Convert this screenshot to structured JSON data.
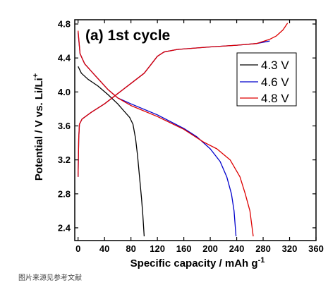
{
  "caption": "图片来源见参考文献",
  "chart_data": {
    "type": "line",
    "title": "(a) 1st cycle",
    "xlabel": "Specific capacity / mAh g",
    "xlabel_sup": "-1",
    "ylabel": "Potential / V vs. Li/Li",
    "ylabel_sup": "+",
    "xlim": [
      -5,
      360
    ],
    "ylim": [
      2.25,
      4.85
    ],
    "xticks": [
      "0",
      "40",
      "80",
      "120",
      "160",
      "200",
      "240",
      "280",
      "320",
      "360"
    ],
    "xtick_values": [
      0,
      40,
      80,
      120,
      160,
      200,
      240,
      280,
      320,
      360
    ],
    "yticks": [
      "2.4",
      "2.8",
      "3.2",
      "3.6",
      "4.0",
      "4.4",
      "4.8"
    ],
    "ytick_values": [
      2.4,
      2.8,
      3.2,
      3.6,
      4.0,
      4.4,
      4.8
    ],
    "grid": false,
    "legend_position": "top-right",
    "series": [
      {
        "name": "4.3 V",
        "color": "#000000",
        "segments": [
          [
            [
              0,
              4.3
            ],
            [
              5,
              4.22
            ],
            [
              15,
              4.15
            ],
            [
              30,
              4.07
            ],
            [
              45,
              3.97
            ],
            [
              60,
              3.86
            ],
            [
              70,
              3.77
            ],
            [
              78,
              3.7
            ],
            [
              83,
              3.62
            ],
            [
              87,
              3.45
            ],
            [
              90,
              3.25
            ],
            [
              93,
              3.0
            ],
            [
              96,
              2.75
            ],
            [
              98,
              2.55
            ],
            [
              100,
              2.3
            ]
          ]
        ]
      },
      {
        "name": "4.6 V",
        "color": "#0000cc",
        "segments": [
          [
            [
              0,
              3.0
            ],
            [
              1,
              3.45
            ],
            [
              2,
              3.62
            ],
            [
              6,
              3.68
            ],
            [
              20,
              3.76
            ],
            [
              40,
              3.86
            ],
            [
              60,
              3.98
            ],
            [
              80,
              4.1
            ],
            [
              100,
              4.22
            ],
            [
              110,
              4.32
            ],
            [
              120,
              4.42
            ],
            [
              130,
              4.47
            ],
            [
              150,
              4.5
            ],
            [
              200,
              4.53
            ],
            [
              240,
              4.55
            ],
            [
              270,
              4.57
            ],
            [
              290,
              4.6
            ]
          ],
          [
            [
              0,
              4.7
            ],
            [
              3,
              4.45
            ],
            [
              10,
              4.33
            ],
            [
              25,
              4.2
            ],
            [
              45,
              4.03
            ],
            [
              60,
              3.93
            ],
            [
              80,
              3.86
            ],
            [
              120,
              3.73
            ],
            [
              160,
              3.57
            ],
            [
              180,
              3.47
            ],
            [
              200,
              3.33
            ],
            [
              215,
              3.18
            ],
            [
              225,
              3.0
            ],
            [
              232,
              2.8
            ],
            [
              236,
              2.6
            ],
            [
              239,
              2.3
            ]
          ]
        ]
      },
      {
        "name": "4.8 V",
        "color": "#dd0000",
        "segments": [
          [
            [
              0,
              3.0
            ],
            [
              1,
              3.45
            ],
            [
              2,
              3.62
            ],
            [
              6,
              3.68
            ],
            [
              20,
              3.76
            ],
            [
              40,
              3.86
            ],
            [
              60,
              3.98
            ],
            [
              80,
              4.1
            ],
            [
              100,
              4.22
            ],
            [
              110,
              4.32
            ],
            [
              120,
              4.42
            ],
            [
              130,
              4.47
            ],
            [
              150,
              4.5
            ],
            [
              200,
              4.53
            ],
            [
              240,
              4.55
            ],
            [
              270,
              4.57
            ],
            [
              290,
              4.62
            ],
            [
              300,
              4.66
            ],
            [
              310,
              4.73
            ],
            [
              317,
              4.81
            ]
          ],
          [
            [
              0,
              4.72
            ],
            [
              3,
              4.45
            ],
            [
              10,
              4.33
            ],
            [
              25,
              4.2
            ],
            [
              45,
              4.03
            ],
            [
              60,
              3.93
            ],
            [
              80,
              3.84
            ],
            [
              120,
              3.71
            ],
            [
              160,
              3.56
            ],
            [
              190,
              3.41
            ],
            [
              210,
              3.33
            ],
            [
              230,
              3.2
            ],
            [
              245,
              3.0
            ],
            [
              253,
              2.8
            ],
            [
              260,
              2.6
            ],
            [
              265,
              2.3
            ]
          ]
        ]
      }
    ]
  }
}
